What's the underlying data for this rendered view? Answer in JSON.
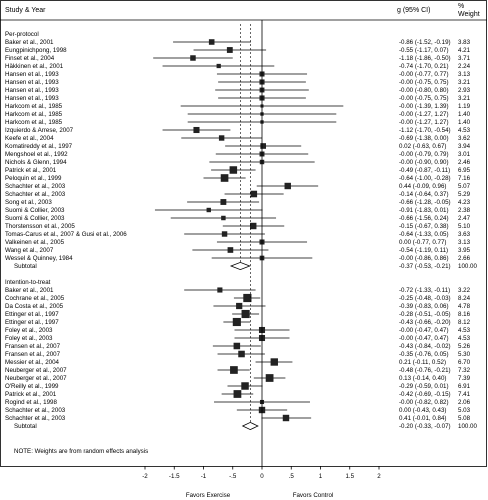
{
  "chart_data": {
    "type": "forest",
    "header": {
      "study_col": "Study & Year",
      "effect_col": "g (95% CI)",
      "weight_col_line1": "%",
      "weight_col_line2": "Weight"
    },
    "x_ticks": [
      -2,
      -1.5,
      -1,
      -0.5,
      0,
      0.5,
      1,
      1.5,
      2
    ],
    "x_tick_labels": [
      "-2",
      "-1.5",
      "-1",
      "-.5",
      "0",
      ".5",
      "1",
      "1.5",
      "2"
    ],
    "xlim": [
      -2,
      2
    ],
    "favors_left": "Favors Exercise",
    "favors_right": "Favors Control",
    "note": "NOTE: Weights are from random effects analysis",
    "groups": [
      {
        "name": "Per-protocol",
        "studies": [
          {
            "study": "Baker et al., 2001",
            "g": -0.86,
            "lo": -1.52,
            "hi": -0.19,
            "ci_text": "-0.86 (-1.52, -0.19)",
            "weight": "3.83"
          },
          {
            "study": "Eungpinichpong, 1998",
            "g": -0.55,
            "lo": -1.17,
            "hi": 0.07,
            "ci_text": "-0.55 (-1.17, 0.07)",
            "weight": "4.21"
          },
          {
            "study": "Finset et al., 2004",
            "g": -1.18,
            "lo": -1.86,
            "hi": -0.5,
            "ci_text": "-1.18 (-1.86, -0.50)",
            "weight": "3.71"
          },
          {
            "study": "Häkkinen et al., 2001",
            "g": -0.74,
            "lo": -1.7,
            "hi": 0.21,
            "ci_text": "-0.74 (-1.70, 0.21)",
            "weight": "2.24"
          },
          {
            "study": "Hansen et al., 1993",
            "g": 0.0,
            "lo": -0.77,
            "hi": 0.77,
            "ci_text": "-0.00 (-0.77, 0.77)",
            "weight": "3.13"
          },
          {
            "study": "Hansen et al., 1993",
            "g": 0.0,
            "lo": -0.75,
            "hi": 0.75,
            "ci_text": "-0.00 (-0.75, 0.75)",
            "weight": "3.21"
          },
          {
            "study": "Hansen et al., 1993",
            "g": 0.0,
            "lo": -0.8,
            "hi": 0.8,
            "ci_text": "-0.00 (-0.80, 0.80)",
            "weight": "2.93"
          },
          {
            "study": "Hansen et al., 1993",
            "g": 0.0,
            "lo": -0.75,
            "hi": 0.75,
            "ci_text": "-0.00 (-0.75, 0.75)",
            "weight": "3.21"
          },
          {
            "study": "Harkcom et al., 1985",
            "g": 0.0,
            "lo": -1.39,
            "hi": 1.39,
            "ci_text": "-0.00 (-1.39, 1.39)",
            "weight": "1.19"
          },
          {
            "study": "Harkcom et al., 1985",
            "g": 0.0,
            "lo": -1.27,
            "hi": 1.27,
            "ci_text": "-0.00 (-1.27, 1.27)",
            "weight": "1.40"
          },
          {
            "study": "Harkcom et al., 1985",
            "g": 0.0,
            "lo": -1.27,
            "hi": 1.27,
            "ci_text": "-0.00 (-1.27, 1.27)",
            "weight": "1.40"
          },
          {
            "study": "Izquierdo & Arrese, 2007",
            "g": -1.12,
            "lo": -1.7,
            "hi": -0.54,
            "ci_text": "-1.12 (-1.70, -0.54)",
            "weight": "4.53"
          },
          {
            "study": "Keefe et al., 2004",
            "g": -0.69,
            "lo": -1.38,
            "hi": 0.0,
            "ci_text": "-0.69 (-1.38, 0.00)",
            "weight": "3.62"
          },
          {
            "study": "Komatireddy et al., 1997",
            "g": 0.02,
            "lo": -0.63,
            "hi": 0.67,
            "ci_text": "0.02 (-0.63, 0.67)",
            "weight": "3.94"
          },
          {
            "study": "Mengshoel et al., 1992",
            "g": 0.0,
            "lo": -0.79,
            "hi": 0.79,
            "ci_text": "-0.00 (-0.79, 0.79)",
            "weight": "3.01"
          },
          {
            "study": "Nichols & Glenn, 1994",
            "g": 0.0,
            "lo": -0.9,
            "hi": 0.9,
            "ci_text": "-0.00 (-0.90, 0.90)",
            "weight": "2.46"
          },
          {
            "study": "Patrick et al., 2001",
            "g": -0.49,
            "lo": -0.87,
            "hi": -0.11,
            "ci_text": "-0.49 (-0.87, -0.11)",
            "weight": "6.95"
          },
          {
            "study": "Peloquin et al., 1999",
            "g": -0.64,
            "lo": -1.0,
            "hi": -0.28,
            "ci_text": "-0.64 (-1.00, -0.28)",
            "weight": "7.16"
          },
          {
            "study": "Schachter et al., 2003",
            "g": 0.44,
            "lo": -0.09,
            "hi": 0.96,
            "ci_text": "0.44 (-0.09, 0.96)",
            "weight": "5.07"
          },
          {
            "study": "Schachter et al., 2003",
            "g": -0.14,
            "lo": -0.64,
            "hi": 0.37,
            "ci_text": "-0.14 (-0.64, 0.37)",
            "weight": "5.29"
          },
          {
            "study": "Song et al., 2003",
            "g": -0.66,
            "lo": -1.28,
            "hi": -0.05,
            "ci_text": "-0.66 (-1.28, -0.05)",
            "weight": "4.23"
          },
          {
            "study": "Suomi & Collier, 2003",
            "g": -0.91,
            "lo": -1.83,
            "hi": 0.01,
            "ci_text": "-0.91 (-1.83, 0.01)",
            "weight": "2.38"
          },
          {
            "study": "Suomi & Collier, 2003",
            "g": -0.66,
            "lo": -1.56,
            "hi": 0.24,
            "ci_text": "-0.66 (-1.56, 0.24)",
            "weight": "2.47"
          },
          {
            "study": "Thorstensson et al., 2005",
            "g": -0.15,
            "lo": -0.67,
            "hi": 0.38,
            "ci_text": "-0.15 (-0.67, 0.38)",
            "weight": "5.10"
          },
          {
            "study": "Tomas-Carus et al., 2007 & Gusi et al., 2006",
            "g": -0.64,
            "lo": -1.33,
            "hi": 0.05,
            "ci_text": "-0.64 (-1.33, 0.05)",
            "weight": "3.63"
          },
          {
            "study": "Valkeinen et al., 2005",
            "g": 0.0,
            "lo": -0.77,
            "hi": 0.77,
            "ci_text": "0.00 (-0.77, 0.77)",
            "weight": "3.13"
          },
          {
            "study": "Wang et al., 2007",
            "g": -0.54,
            "lo": -1.19,
            "hi": 0.11,
            "ci_text": "-0.54 (-1.19, 0.11)",
            "weight": "3.95"
          },
          {
            "study": "Wessel & Quinney, 1984",
            "g": 0.0,
            "lo": -0.86,
            "hi": 0.86,
            "ci_text": "-0.00 (-0.86, 0.86)",
            "weight": "2.66"
          }
        ],
        "subtotal": {
          "label": "Subtotal",
          "g": -0.37,
          "lo": -0.53,
          "hi": -0.21,
          "ci_text": "-0.37 (-0.53, -0.21)",
          "weight": "100.00"
        }
      },
      {
        "name": "Intention-to-treat",
        "studies": [
          {
            "study": "Baker et al., 2001",
            "g": -0.72,
            "lo": -1.33,
            "hi": -0.11,
            "ci_text": "-0.72 (-1.33, -0.11)",
            "weight": "3.22"
          },
          {
            "study": "Cochrane et al., 2005",
            "g": -0.25,
            "lo": -0.48,
            "hi": -0.03,
            "ci_text": "-0.25 (-0.48, -0.03)",
            "weight": "8.24"
          },
          {
            "study": "Da Costa et al., 2005",
            "g": -0.39,
            "lo": -0.83,
            "hi": 0.06,
            "ci_text": "-0.39 (-0.83, 0.06)",
            "weight": "4.78"
          },
          {
            "study": "Ettinger et al., 1997",
            "g": -0.28,
            "lo": -0.51,
            "hi": -0.05,
            "ci_text": "-0.28 (-0.51, -0.05)",
            "weight": "8.16"
          },
          {
            "study": "Ettinger et al., 1997",
            "g": -0.43,
            "lo": -0.66,
            "hi": -0.2,
            "ci_text": "-0.43 (-0.66, -0.20)",
            "weight": "8.12"
          },
          {
            "study": "Foley et al., 2003",
            "g": 0.0,
            "lo": -0.47,
            "hi": 0.47,
            "ci_text": "-0.00 (-0.47, 0.47)",
            "weight": "4.53"
          },
          {
            "study": "Foley et al., 2003",
            "g": 0.0,
            "lo": -0.47,
            "hi": 0.47,
            "ci_text": "-0.00 (-0.47, 0.47)",
            "weight": "4.53"
          },
          {
            "study": "Fransen et al., 2007",
            "g": -0.43,
            "lo": -0.84,
            "hi": -0.02,
            "ci_text": "-0.43 (-0.84, -0.02)",
            "weight": "5.26"
          },
          {
            "study": "Fransen et al., 2007",
            "g": -0.35,
            "lo": -0.76,
            "hi": 0.05,
            "ci_text": "-0.35 (-0.76, 0.05)",
            "weight": "5.30"
          },
          {
            "study": "Messier et al., 2004",
            "g": 0.21,
            "lo": -0.11,
            "hi": 0.52,
            "ci_text": "0.21 (-0.11, 0.52)",
            "weight": "6.70"
          },
          {
            "study": "Neuberger et al., 2007",
            "g": -0.48,
            "lo": -0.76,
            "hi": -0.21,
            "ci_text": "-0.48 (-0.76, -0.21)",
            "weight": "7.32"
          },
          {
            "study": "Neuberger et al., 2007",
            "g": 0.13,
            "lo": -0.14,
            "hi": 0.4,
            "ci_text": "0.13 (-0.14, 0.40)",
            "weight": "7.39"
          },
          {
            "study": "O'Reilly et al., 1999",
            "g": -0.29,
            "lo": -0.59,
            "hi": 0.01,
            "ci_text": "-0.29 (-0.59, 0.01)",
            "weight": "6.91"
          },
          {
            "study": "Patrick et al., 2001",
            "g": -0.42,
            "lo": -0.69,
            "hi": -0.15,
            "ci_text": "-0.42 (-0.69, -0.15)",
            "weight": "7.41"
          },
          {
            "study": "Rogind et al., 1998",
            "g": 0.0,
            "lo": -0.82,
            "hi": 0.82,
            "ci_text": "-0.00 (-0.82, 0.82)",
            "weight": "2.06"
          },
          {
            "study": "Schachter et al., 2003",
            "g": 0.0,
            "lo": -0.43,
            "hi": 0.43,
            "ci_text": "0.00 (-0.43, 0.43)",
            "weight": "5.03"
          },
          {
            "study": "Schachter et al., 2003",
            "g": 0.41,
            "lo": -0.01,
            "hi": 0.84,
            "ci_text": "0.41 (-0.01, 0.84)",
            "weight": "5.08"
          }
        ],
        "subtotal": {
          "label": "Subtotal",
          "g": -0.2,
          "lo": -0.33,
          "hi": -0.07,
          "ci_text": "-0.20 (-0.33, -0.07)",
          "weight": "100.00"
        }
      }
    ]
  }
}
